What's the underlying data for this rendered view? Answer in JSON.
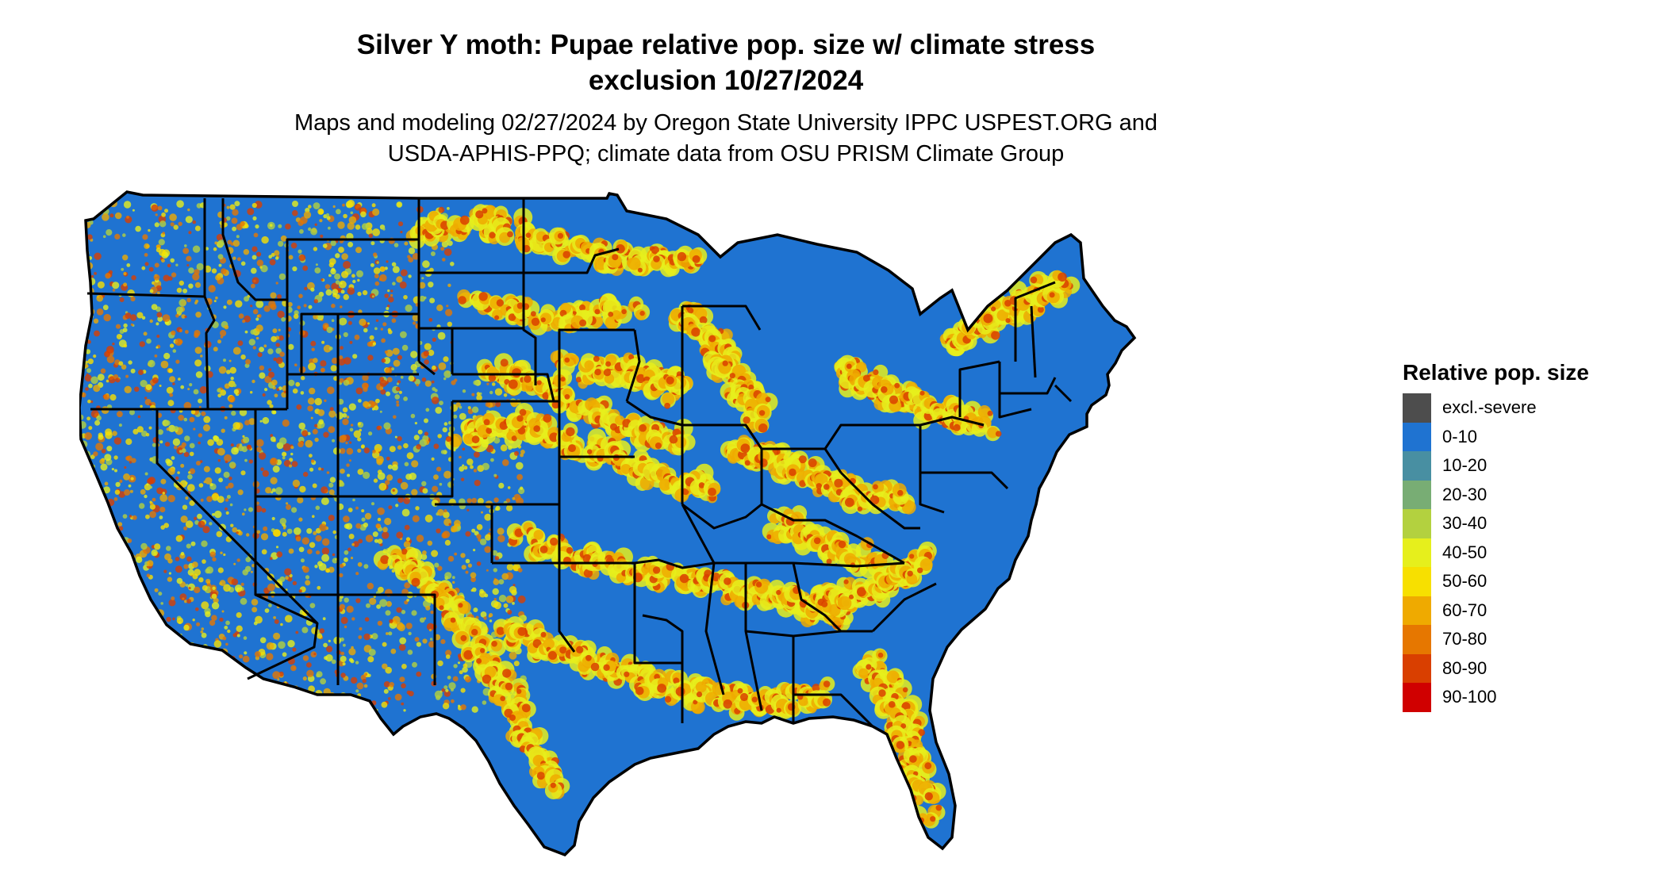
{
  "title": {
    "line1": "Silver Y moth: Pupae relative pop. size w/ climate stress",
    "line2": "exclusion 10/27/2024"
  },
  "subtitle": {
    "line1": "Maps and modeling 02/27/2024 by Oregon State University IPPC USPEST.ORG and",
    "line2": "USDA-APHIS-PPQ; climate data from OSU PRISM Climate Group"
  },
  "map": {
    "region": "contiguous-united-states",
    "base_color": "#1f73d1",
    "border_color": "#000000"
  },
  "legend": {
    "title": "Relative pop. size",
    "items": [
      {
        "label": "excl.-severe",
        "color": "#4d4d4d"
      },
      {
        "label": "0-10",
        "color": "#1f73d1"
      },
      {
        "label": "10-20",
        "color": "#488fa2"
      },
      {
        "label": "20-30",
        "color": "#78ad74"
      },
      {
        "label": "30-40",
        "color": "#b3d13f"
      },
      {
        "label": "40-50",
        "color": "#e6ef1c"
      },
      {
        "label": "50-60",
        "color": "#f7e000"
      },
      {
        "label": "60-70",
        "color": "#efaa00"
      },
      {
        "label": "70-80",
        "color": "#e67700"
      },
      {
        "label": "80-90",
        "color": "#d93f00"
      },
      {
        "label": "90-100",
        "color": "#d00000"
      }
    ]
  }
}
